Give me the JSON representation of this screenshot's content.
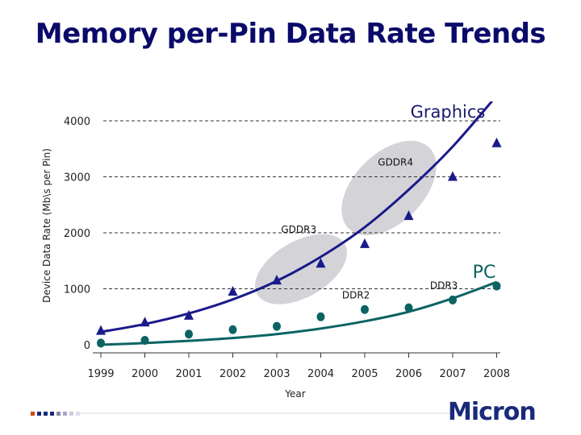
{
  "title": "Memory per-Pin Data Rate Trends",
  "logo_text": "Micron",
  "chart_data": {
    "type": "scatter",
    "xlabel": "Year",
    "ylabel": "Device Data Rate (Mb\\s per Pin)",
    "categories": [
      "1999",
      "2000",
      "2001",
      "2002",
      "2003",
      "2004",
      "2005",
      "2006",
      "2007",
      "2008"
    ],
    "ylim": [
      0,
      4000
    ],
    "yticks": [
      0,
      1000,
      2000,
      3000,
      4000
    ],
    "grid": "dashed horizontal",
    "series": [
      {
        "name": "Graphics",
        "marker": "triangle",
        "color": "#1a1a8a",
        "values": [
          250,
          400,
          520,
          950,
          1150,
          1450,
          1800,
          2300,
          3000,
          3600
        ],
        "trend": [
          230,
          370,
          560,
          810,
          1140,
          1570,
          2100,
          2770,
          3540,
          4450
        ]
      },
      {
        "name": "PC",
        "marker": "circle",
        "color": "#0c6363",
        "values": [
          30,
          80,
          190,
          270,
          330,
          500,
          630,
          660,
          800,
          1050
        ],
        "trend": [
          0,
          30,
          70,
          120,
          190,
          290,
          420,
          590,
          830,
          1120
        ]
      }
    ],
    "annotations": [
      {
        "text": "GDDR3",
        "x": 4.5,
        "y": 2000
      },
      {
        "text": "GDDR4",
        "x": 6.7,
        "y": 3200
      },
      {
        "text": "DDR2",
        "x": 5.8,
        "y": 830
      },
      {
        "text": "DDR3",
        "x": 7.8,
        "y": 1000
      }
    ],
    "highlights": [
      {
        "cx": 4.55,
        "cy": 1350,
        "rx": 1.15,
        "ry": 500,
        "rotate": -30
      },
      {
        "cx": 6.55,
        "cy": 2800,
        "rx": 1.3,
        "ry": 620,
        "rotate": -45
      }
    ]
  }
}
